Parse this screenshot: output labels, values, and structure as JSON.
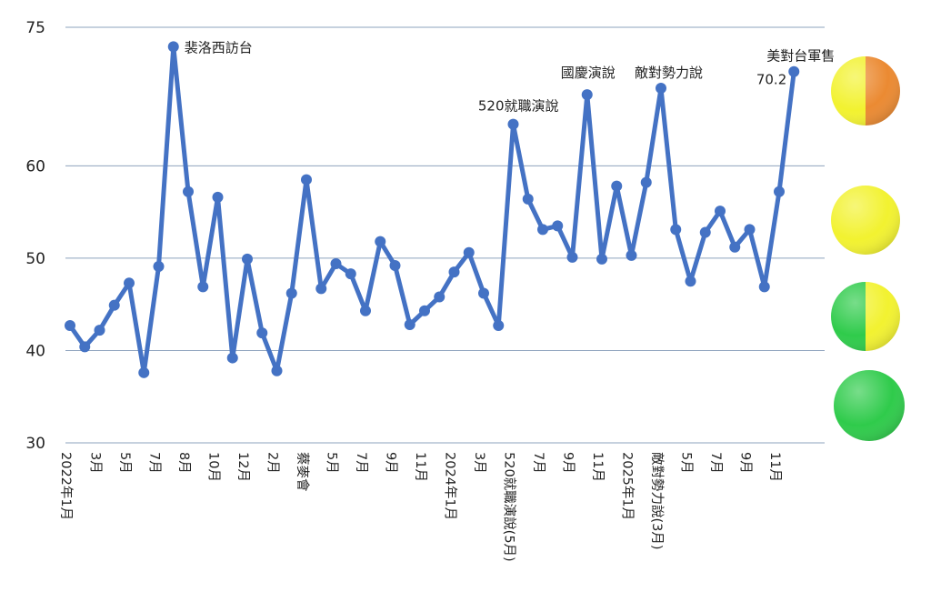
{
  "chart_data": {
    "type": "line",
    "ylim": [
      30,
      75
    ],
    "yticks": [
      30,
      40,
      50,
      60,
      75
    ],
    "grid": true,
    "series_color": "#4472c4",
    "x_labels": [
      "2022年1月",
      "3月",
      "5月",
      "7月",
      "8月",
      "10月",
      "12月",
      "2月",
      "蔡麥會",
      "5月",
      "7月",
      "9月",
      "11月",
      "2024年1月",
      "3月",
      "520就職演說(5月)",
      "7月",
      "9月",
      "11月",
      "2025年1月",
      "敵對勢力說(3月)",
      "5月",
      "7月",
      "9月",
      "11月"
    ],
    "values": [
      42.7,
      40.4,
      42.2,
      44.9,
      47.3,
      37.6,
      49.1,
      72.9,
      57.2,
      46.9,
      56.6,
      39.2,
      49.9,
      41.9,
      37.8,
      46.2,
      58.5,
      46.7,
      49.4,
      48.3,
      44.3,
      51.8,
      49.2,
      42.8,
      44.3,
      45.8,
      48.5,
      50.6,
      46.2,
      42.7,
      64.5,
      56.4,
      53.1,
      53.5,
      50.1,
      67.7,
      49.9,
      57.8,
      50.3,
      58.2,
      68.4,
      53.1,
      47.5,
      52.8,
      55.1,
      51.2,
      53.1,
      46.9,
      57.2,
      70.2
    ],
    "annotations": [
      {
        "index": 7,
        "text": "裴洛西訪台"
      },
      {
        "index": 30,
        "text": "520就職演說"
      },
      {
        "index": 35,
        "text": "國慶演說"
      },
      {
        "index": 40,
        "text": "敵對勢力說"
      },
      {
        "index": 49,
        "text": "美對台軍售"
      },
      {
        "index": 49,
        "text": "70.2"
      }
    ],
    "indicators": [
      {
        "left": "#f2f230",
        "right": "#eb8a32"
      },
      {
        "left": "#f2f230",
        "right": "#f2f230"
      },
      {
        "left": "#2fcb4b",
        "right": "#f2f230"
      },
      {
        "left": "#2fcb4b",
        "right": "#2fcb4b"
      }
    ]
  }
}
